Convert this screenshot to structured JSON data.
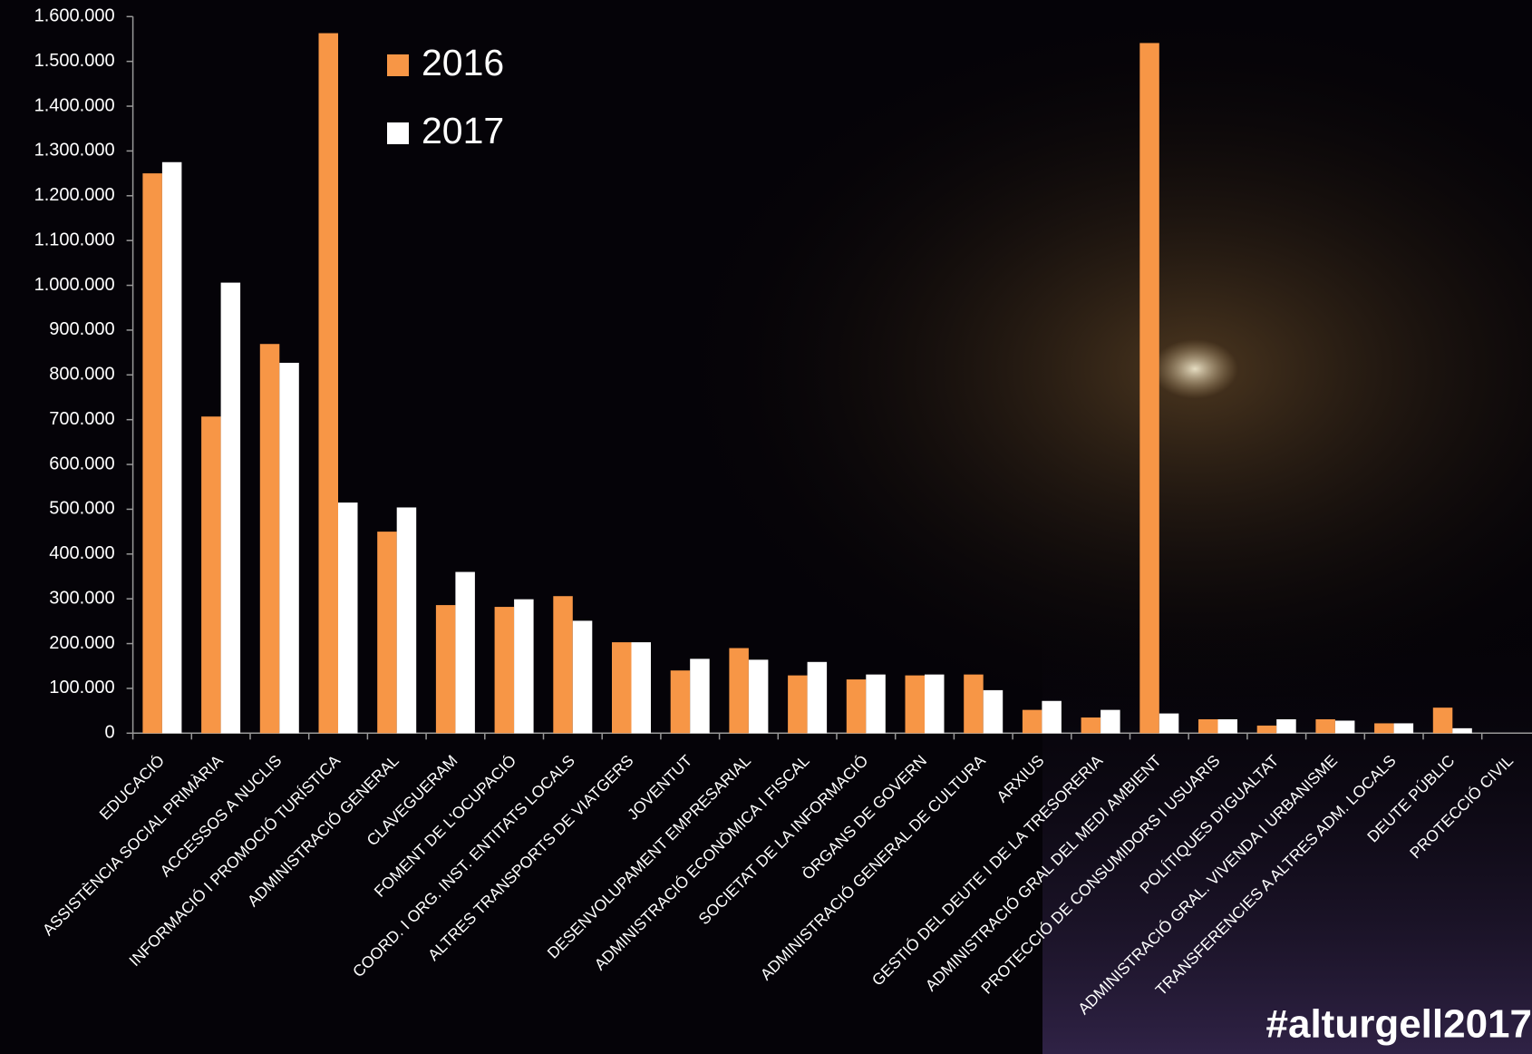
{
  "chart_data": {
    "type": "bar",
    "categories": [
      "EDUCACIÓ",
      "ASSISTÈNCIA SOCIAL PRIMÀRIA",
      "ACCESSOS A NUCLIS",
      "INFORMACIÓ I PROMOCIÓ TURÍSTICA",
      "ADMINISTRACIÓ GENERAL",
      "CLAVEGUERAM",
      "FOMENT DE L'OCUPACIÓ",
      "COORD. I ORG. INST. ENTITATS LOCALS",
      "ALTRES TRANSPORTS DE VIATGERS",
      "JOVENTUT",
      "DESENVOLUPAMENT EMPRESARIAL",
      "ADMINISTRACIÓ ECONÒMICA I FISCAL",
      "SOCIETAT DE LA INFORMACIÓ",
      "ÒRGANS DE GOVERN",
      "ADMINISTRACIÓ GENERAL DE CULTURA",
      "ARXIUS",
      "GESTIÓ DEL DEUTE I DE LA TRESORERIA",
      "ADMINISTRACIÓ GRAL DEL MEDI AMBIENT",
      "PROTECCIÓ DE CONSUMIDORS I USUARIS",
      "POLÍTIQUES D'IGUALTAT",
      "ADMINISTRACIÓ GRAL. VIVENDA I URBANISME",
      "TRANSFERENCIES A ALTRES ADM. LOCALS",
      "DEUTE PÚBLIC",
      "PROTECCIÓ CIVIL"
    ],
    "series": [
      {
        "name": "2016",
        "color": "#f79646",
        "values": [
          1250000,
          707000,
          869000,
          1563000,
          450000,
          286000,
          282000,
          306000,
          203000,
          140000,
          190000,
          129000,
          120000,
          129000,
          131000,
          52000,
          35000,
          1541000,
          31000,
          17000,
          31000,
          22000,
          57000,
          0
        ]
      },
      {
        "name": "2017",
        "color": "#ffffff",
        "values": [
          1275000,
          1006000,
          827000,
          515000,
          504000,
          360000,
          299000,
          251000,
          203000,
          166000,
          164000,
          159000,
          131000,
          131000,
          96000,
          72000,
          52000,
          44000,
          31000,
          31000,
          28000,
          22000,
          11000,
          0
        ]
      }
    ],
    "ylim": [
      0,
      1600000
    ],
    "yticks": [
      0,
      {
        "value": 100000,
        "label": "100.000"
      },
      {
        "value": 200000,
        "label": "200.000"
      },
      {
        "value": 300000,
        "label": "300.000"
      },
      {
        "value": 400000,
        "label": "400.000"
      },
      {
        "value": 500000,
        "label": "500.000"
      },
      {
        "value": 600000,
        "label": "600.000"
      },
      {
        "value": 700000,
        "label": "700.000"
      },
      {
        "value": 800000,
        "label": "800.000"
      },
      {
        "value": 900000,
        "label": "900.000"
      },
      {
        "value": 1000000,
        "label": "1.000.000"
      },
      {
        "value": 1100000,
        "label": "1.100.000"
      },
      {
        "value": 1200000,
        "label": "1.200.000"
      },
      {
        "value": 1300000,
        "label": "1.300.000"
      },
      {
        "value": 1400000,
        "label": "1.400.000"
      },
      {
        "value": 1500000,
        "label": "1.500.000"
      },
      {
        "value": 1600000,
        "label": "1.600.000"
      }
    ],
    "grid": false,
    "legend": "top-left",
    "hashtag": "#alturgell2017"
  }
}
